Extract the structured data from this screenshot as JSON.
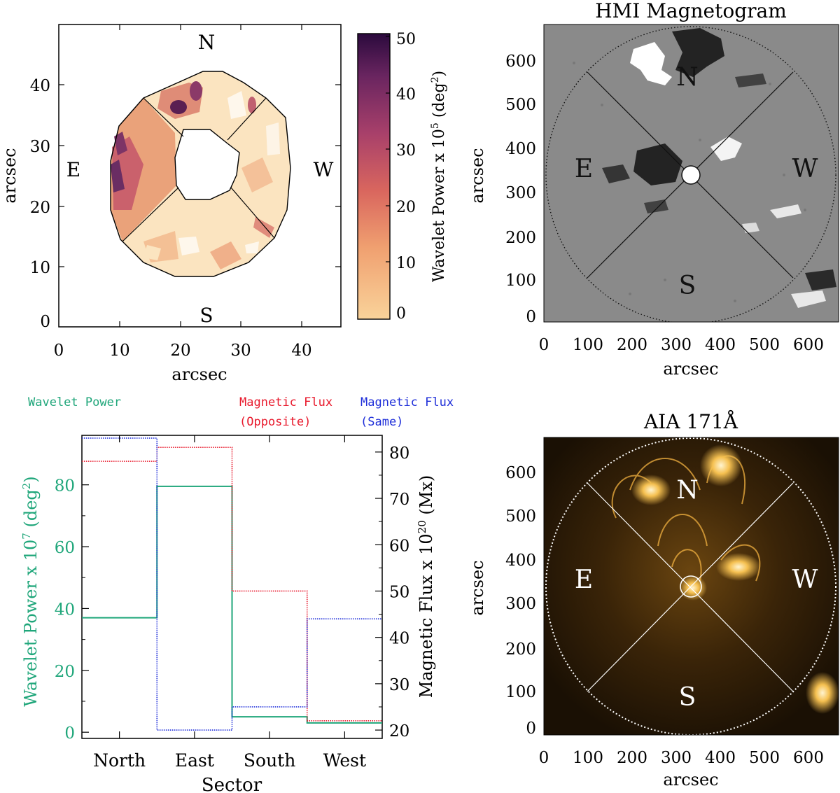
{
  "panel_a": {
    "xlabel": "arcsec",
    "ylabel": "arcsec",
    "x_ticks": [
      "0",
      "10",
      "20",
      "30",
      "40"
    ],
    "y_ticks": [
      "0",
      "10",
      "20",
      "30",
      "40"
    ],
    "dir_n": "N",
    "dir_s": "S",
    "dir_e": "E",
    "dir_w": "W"
  },
  "colorbar": {
    "label_main": "Wavelet Power x 10",
    "label_exp": "5",
    "label_unit_open": " (deg",
    "label_unit_exp": "2",
    "label_unit_close": ")",
    "ticks": [
      "0",
      "10",
      "20",
      "30",
      "40",
      "50"
    ],
    "color_low": "#f9d39a",
    "color_high": "#2b0a3d"
  },
  "hmi": {
    "title": "HMI Magnetogram",
    "xlabel": "arcsec",
    "ylabel": "arcsec",
    "x_ticks": [
      "0",
      "100",
      "200",
      "300",
      "400",
      "500",
      "600"
    ],
    "y_ticks": [
      "0",
      "100",
      "200",
      "300",
      "400",
      "500",
      "600"
    ],
    "dir_n": "N",
    "dir_s": "S",
    "dir_e": "E",
    "dir_w": "W"
  },
  "aia": {
    "title": "AIA 171Å",
    "xlabel": "arcsec",
    "ylabel": "arcsec",
    "x_ticks": [
      "0",
      "100",
      "200",
      "300",
      "400",
      "500",
      "600"
    ],
    "y_ticks": [
      "0",
      "100",
      "200",
      "300",
      "400",
      "500",
      "600"
    ],
    "dir_n": "N",
    "dir_s": "S",
    "dir_e": "E",
    "dir_w": "W"
  },
  "legend": {
    "wavelet": "Wavelet Power",
    "opposite_line1": "Magnetic Flux",
    "opposite_line2": "(Opposite)",
    "same_line1": "Magnetic Flux",
    "same_line2": "(Same)"
  },
  "chart_data": {
    "type": "line",
    "step": true,
    "title": "",
    "xlabel": "Sector",
    "categories": [
      "North",
      "East",
      "South",
      "West"
    ],
    "ylabel": "Wavelet Power x 10^7 (deg^2)",
    "ylabel_parts": {
      "main": "Wavelet Power x 10",
      "exp": "7",
      "unit_open": " (deg",
      "unit_exp": "2",
      "unit_close": ")"
    },
    "ylim": [
      -2,
      96
    ],
    "y_ticks": [
      "0",
      "20",
      "40",
      "60",
      "80"
    ],
    "y2label": "Magnetic Flux x 10^20 (Mx)",
    "y2label_parts": {
      "main": "Magnetic Flux x 10",
      "exp": "20",
      "unit": " (Mx)"
    },
    "y2lim": [
      18.2,
      83.6
    ],
    "y2_ticks": [
      "20",
      "30",
      "40",
      "50",
      "60",
      "70",
      "80"
    ],
    "series": [
      {
        "name": "Wavelet Power",
        "axis": "left",
        "color": "#1fa67a",
        "style": "solid",
        "values": [
          37,
          79.5,
          5,
          3
        ]
      },
      {
        "name": "Magnetic Flux (Opposite)",
        "axis": "right",
        "color": "#e8192c",
        "style": "dotted",
        "values": [
          78,
          81,
          50,
          22
        ]
      },
      {
        "name": "Magnetic Flux (Same)",
        "axis": "right",
        "color": "#1f2fd9",
        "style": "dotted",
        "values": [
          83,
          20,
          25,
          44
        ]
      }
    ]
  }
}
